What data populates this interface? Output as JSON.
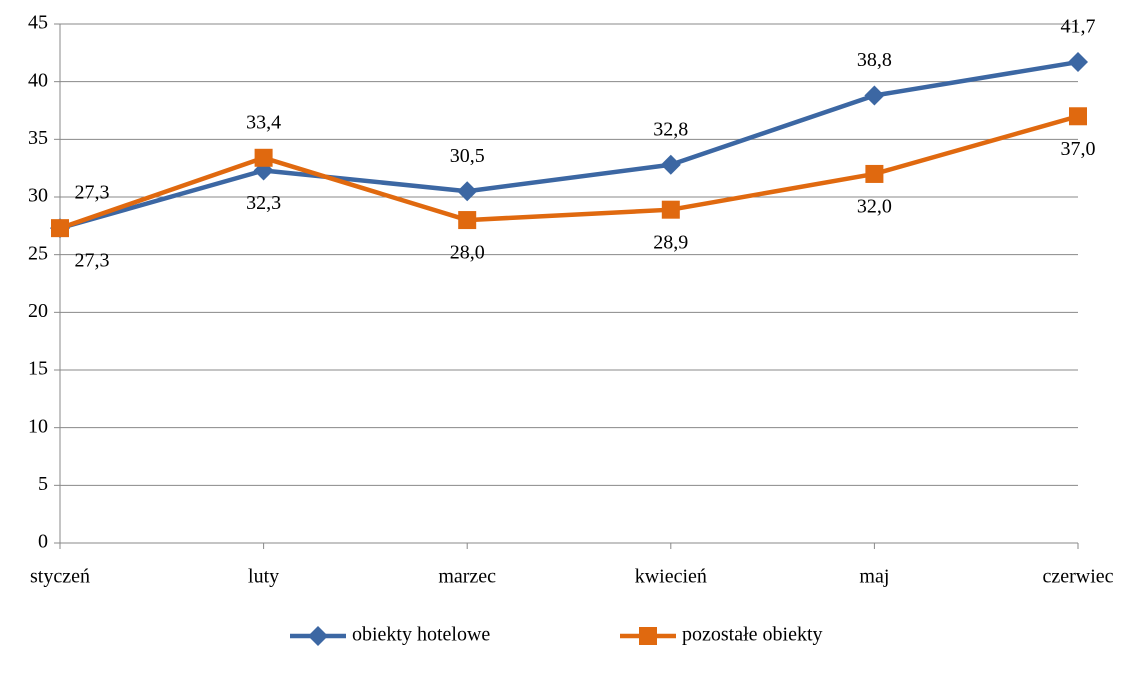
{
  "chart_data": {
    "type": "line",
    "categories": [
      "styczeń",
      "luty",
      "marzec",
      "kwiecień",
      "maj",
      "czerwiec"
    ],
    "series": [
      {
        "name": "obiekty hotelowe",
        "color": "#3c67a3",
        "marker": "diamond",
        "values": [
          27.3,
          32.3,
          30.5,
          32.8,
          38.8,
          41.7
        ],
        "value_labels": [
          "27,3",
          "32,3",
          "30,5",
          "32,8",
          "38,8",
          "41,7"
        ]
      },
      {
        "name": "pozostałe obiekty",
        "color": "#e0690f",
        "marker": "square",
        "values": [
          27.3,
          33.4,
          28.0,
          28.9,
          32.0,
          37.0
        ],
        "value_labels": [
          "27,3",
          "33,4",
          "28,0",
          "28,9",
          "32,0",
          "37,0"
        ]
      }
    ],
    "ylim": [
      0,
      45
    ],
    "yticks": [
      0,
      5,
      10,
      15,
      20,
      25,
      30,
      35,
      40,
      45
    ],
    "grid": true,
    "legend": "bottom"
  }
}
